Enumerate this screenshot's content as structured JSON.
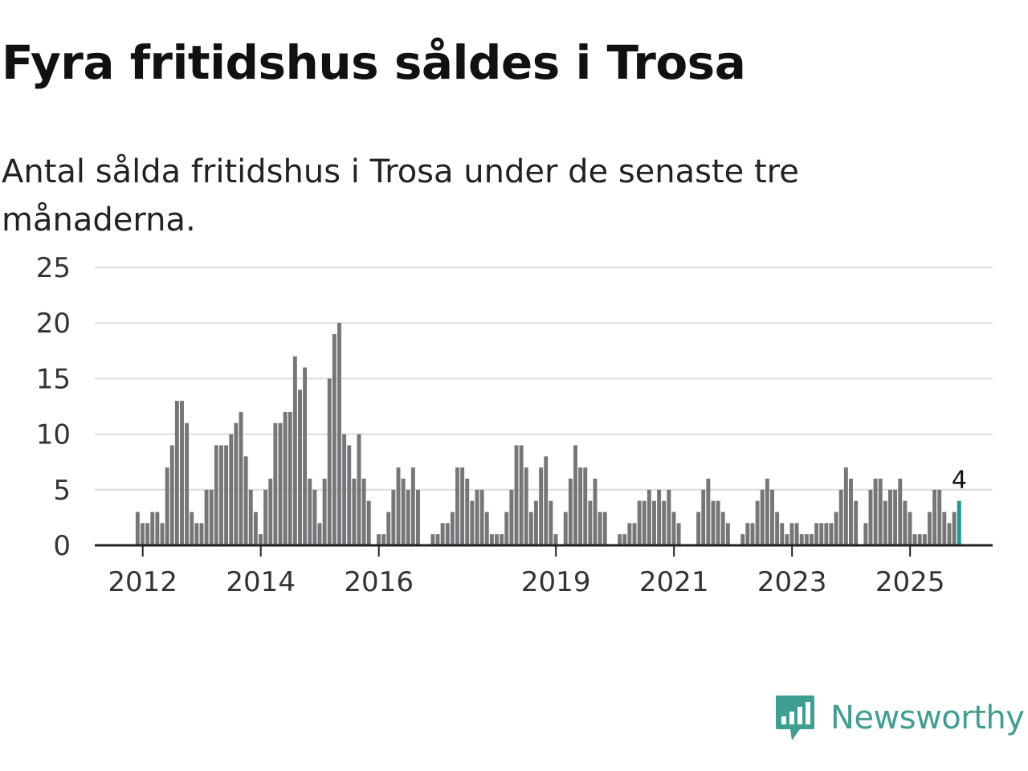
{
  "header": {
    "title": "Fyra fritidshus såldes i Trosa",
    "subtitle": "Antal sålda fritidshus i Trosa under de senaste tre månaderna."
  },
  "brand": {
    "name": "Newsworthy",
    "icon": "newsworthy-logo-icon"
  },
  "colors": {
    "bar": "#76767a",
    "highlight": "#1a9c90",
    "grid": "#dcdcdc",
    "axis": "#222222",
    "tick_text": "#333333",
    "brand": "#3f9e92"
  },
  "chart_data": {
    "type": "bar",
    "title": "Fyra fritidshus såldes i Trosa",
    "subtitle": "Antal sålda fritidshus i Trosa under de senaste tre månaderna.",
    "xlabel": "",
    "ylabel": "",
    "ylim": [
      0,
      25
    ],
    "yticks": [
      0,
      5,
      10,
      15,
      20,
      25
    ],
    "grid": true,
    "start_month": "2011-12",
    "xticks": [
      {
        "label": "2012",
        "month": "2012-01"
      },
      {
        "label": "2014",
        "month": "2014-01"
      },
      {
        "label": "2016",
        "month": "2016-01"
      },
      {
        "label": "2019",
        "month": "2019-01"
      },
      {
        "label": "2021",
        "month": "2021-01"
      },
      {
        "label": "2023",
        "month": "2023-01"
      },
      {
        "label": "2025",
        "month": "2025-01"
      }
    ],
    "values": [
      3,
      2,
      2,
      3,
      3,
      2,
      7,
      9,
      13,
      13,
      11,
      3,
      2,
      2,
      5,
      5,
      9,
      9,
      9,
      10,
      11,
      12,
      8,
      5,
      3,
      1,
      5,
      6,
      11,
      11,
      12,
      12,
      17,
      14,
      16,
      6,
      5,
      2,
      6,
      15,
      19,
      20,
      10,
      9,
      6,
      10,
      6,
      4,
      0,
      1,
      1,
      3,
      5,
      7,
      6,
      5,
      7,
      5,
      0,
      0,
      1,
      1,
      2,
      2,
      3,
      7,
      7,
      6,
      4,
      5,
      5,
      3,
      1,
      1,
      1,
      3,
      5,
      9,
      9,
      7,
      3,
      4,
      7,
      8,
      4,
      1,
      0,
      3,
      6,
      9,
      7,
      7,
      4,
      6,
      3,
      3,
      0,
      0,
      1,
      1,
      2,
      2,
      4,
      4,
      5,
      4,
      5,
      4,
      5,
      3,
      2,
      0,
      0,
      0,
      3,
      5,
      6,
      4,
      4,
      3,
      2,
      0,
      0,
      1,
      2,
      2,
      4,
      5,
      6,
      5,
      3,
      2,
      1,
      2,
      2,
      1,
      1,
      1,
      2,
      2,
      2,
      2,
      3,
      5,
      7,
      6,
      4,
      0,
      2,
      5,
      6,
      6,
      4,
      5,
      5,
      6,
      4,
      3,
      1,
      1,
      1,
      3,
      5,
      5,
      3,
      2,
      3,
      4
    ],
    "last_value_label": "4",
    "highlight_last": true
  }
}
